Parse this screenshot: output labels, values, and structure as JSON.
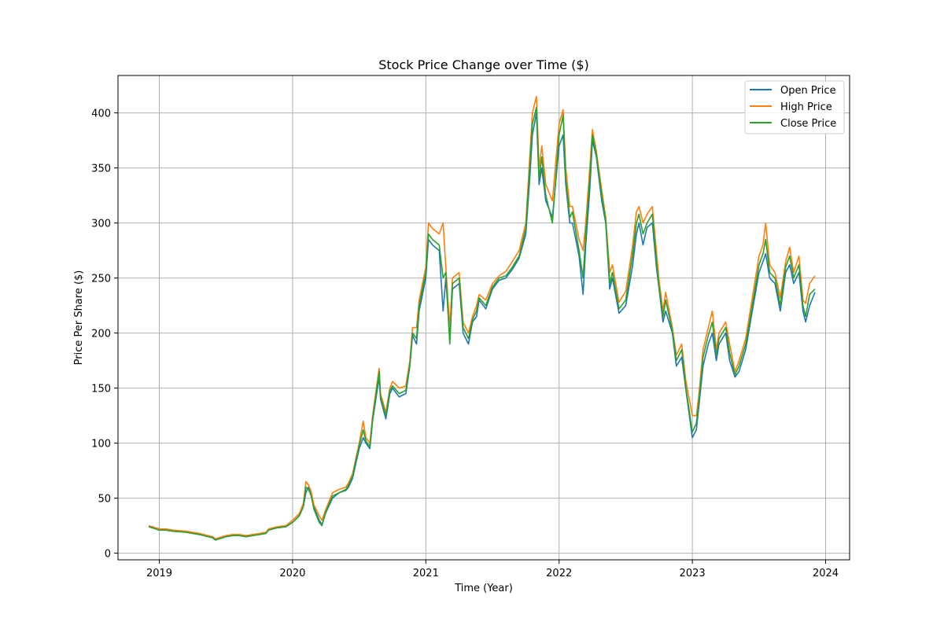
{
  "chart_data": {
    "type": "line",
    "title": "Stock Price Change over Time ($)",
    "xlabel": "Time (Year)",
    "ylabel": "Price Per Share ($)",
    "xlim": [
      2018.69,
      2024.18
    ],
    "ylim": [
      -6,
      434
    ],
    "x_ticks": [
      2019,
      2020,
      2021,
      2022,
      2023,
      2024
    ],
    "x_tick_labels": [
      "2019",
      "2020",
      "2021",
      "2022",
      "2023",
      "2024"
    ],
    "y_ticks": [
      0,
      50,
      100,
      150,
      200,
      250,
      300,
      350,
      400
    ],
    "grid": true,
    "legend": "top-right",
    "x": [
      2018.92,
      2018.95,
      2019.0,
      2019.05,
      2019.1,
      2019.2,
      2019.3,
      2019.4,
      2019.42,
      2019.5,
      2019.55,
      2019.6,
      2019.65,
      2019.7,
      2019.75,
      2019.8,
      2019.82,
      2019.88,
      2019.95,
      2020.0,
      2020.05,
      2020.08,
      2020.1,
      2020.12,
      2020.14,
      2020.16,
      2020.2,
      2020.22,
      2020.25,
      2020.3,
      2020.35,
      2020.4,
      2020.42,
      2020.45,
      2020.5,
      2020.53,
      2020.55,
      2020.58,
      2020.6,
      2020.65,
      2020.66,
      2020.7,
      2020.73,
      2020.75,
      2020.8,
      2020.85,
      2020.88,
      2020.9,
      2020.93,
      2020.95,
      2021.0,
      2021.02,
      2021.05,
      2021.1,
      2021.13,
      2021.15,
      2021.18,
      2021.2,
      2021.25,
      2021.28,
      2021.32,
      2021.35,
      2021.38,
      2021.4,
      2021.45,
      2021.5,
      2021.55,
      2021.6,
      2021.65,
      2021.7,
      2021.75,
      2021.78,
      2021.8,
      2021.83,
      2021.85,
      2021.87,
      2021.9,
      2021.95,
      2022.0,
      2022.03,
      2022.05,
      2022.08,
      2022.1,
      2022.15,
      2022.18,
      2022.2,
      2022.23,
      2022.25,
      2022.28,
      2022.32,
      2022.35,
      2022.38,
      2022.4,
      2022.45,
      2022.5,
      2022.55,
      2022.58,
      2022.6,
      2022.63,
      2022.66,
      2022.7,
      2022.73,
      2022.75,
      2022.78,
      2022.8,
      2022.85,
      2022.88,
      2022.92,
      2022.95,
      2023.0,
      2023.03,
      2023.05,
      2023.08,
      2023.12,
      2023.15,
      2023.18,
      2023.2,
      2023.25,
      2023.28,
      2023.32,
      2023.35,
      2023.4,
      2023.45,
      2023.5,
      2023.53,
      2023.55,
      2023.58,
      2023.62,
      2023.66,
      2023.7,
      2023.73,
      2023.76,
      2023.8,
      2023.83,
      2023.85,
      2023.88,
      2023.92
    ],
    "series": [
      {
        "name": "Open Price",
        "color": "#1f77b4",
        "values": [
          24,
          23,
          21,
          21,
          20,
          19,
          17,
          14,
          12,
          15,
          16,
          16,
          15,
          16,
          17,
          18,
          21,
          23,
          24,
          28,
          34,
          42,
          55,
          60,
          52,
          42,
          30,
          26,
          37,
          50,
          55,
          57,
          60,
          68,
          95,
          105,
          100,
          95,
          120,
          160,
          140,
          122,
          145,
          150,
          142,
          145,
          170,
          198,
          190,
          220,
          250,
          285,
          280,
          275,
          220,
          250,
          195,
          240,
          245,
          200,
          190,
          210,
          215,
          230,
          222,
          240,
          248,
          250,
          258,
          268,
          290,
          340,
          380,
          400,
          335,
          350,
          320,
          305,
          370,
          380,
          335,
          300,
          300,
          270,
          235,
          280,
          330,
          375,
          360,
          320,
          300,
          240,
          250,
          218,
          225,
          260,
          290,
          300,
          280,
          296,
          300,
          260,
          240,
          210,
          220,
          200,
          170,
          178,
          150,
          105,
          112,
          135,
          170,
          190,
          200,
          175,
          190,
          200,
          175,
          160,
          165,
          185,
          220,
          255,
          265,
          272,
          250,
          245,
          220,
          255,
          262,
          245,
          255,
          220,
          210,
          225,
          237
        ]
      },
      {
        "name": "High Price",
        "color": "#ff7f0e",
        "values": [
          25,
          24,
          22,
          22,
          21,
          20,
          18,
          15,
          13,
          16,
          17,
          17,
          16,
          17,
          18,
          19,
          22,
          24,
          25,
          30,
          36,
          45,
          65,
          62,
          56,
          44,
          34,
          30,
          40,
          55,
          58,
          60,
          64,
          72,
          100,
          120,
          105,
          100,
          125,
          168,
          145,
          128,
          150,
          156,
          150,
          152,
          175,
          205,
          205,
          230,
          260,
          300,
          295,
          290,
          300,
          260,
          205,
          250,
          255,
          210,
          200,
          215,
          225,
          235,
          230,
          245,
          252,
          256,
          265,
          275,
          300,
          360,
          400,
          415,
          350,
          370,
          335,
          320,
          390,
          403,
          350,
          315,
          315,
          285,
          275,
          300,
          350,
          385,
          365,
          330,
          305,
          255,
          262,
          228,
          238,
          278,
          310,
          315,
          300,
          308,
          315,
          275,
          248,
          220,
          237,
          205,
          180,
          190,
          158,
          125,
          125,
          145,
          185,
          205,
          220,
          185,
          200,
          210,
          190,
          165,
          175,
          195,
          232,
          270,
          280,
          300,
          262,
          255,
          232,
          265,
          278,
          255,
          270,
          230,
          227,
          245,
          252
        ]
      },
      {
        "name": "Close Price",
        "color": "#2ca02c",
        "values": [
          24,
          23,
          21,
          21,
          20,
          19,
          17,
          14,
          12,
          15,
          16,
          16,
          15,
          16,
          17,
          18,
          21,
          23,
          24,
          28,
          34,
          42,
          60,
          58,
          52,
          40,
          28,
          25,
          38,
          52,
          55,
          58,
          62,
          70,
          98,
          112,
          102,
          97,
          122,
          165,
          142,
          125,
          148,
          152,
          145,
          148,
          172,
          200,
          195,
          225,
          255,
          290,
          285,
          280,
          250,
          255,
          190,
          245,
          250,
          205,
          195,
          212,
          220,
          232,
          225,
          242,
          250,
          252,
          260,
          270,
          295,
          350,
          390,
          405,
          340,
          360,
          325,
          300,
          380,
          398,
          340,
          305,
          310,
          275,
          250,
          290,
          340,
          380,
          362,
          325,
          302,
          245,
          255,
          222,
          230,
          270,
          300,
          308,
          290,
          300,
          308,
          265,
          242,
          215,
          230,
          202,
          175,
          185,
          152,
          110,
          118,
          140,
          178,
          198,
          210,
          180,
          195,
          205,
          182,
          162,
          170,
          190,
          225,
          262,
          272,
          285,
          255,
          250,
          225,
          260,
          270,
          250,
          262,
          225,
          215,
          235,
          240
        ]
      }
    ]
  }
}
